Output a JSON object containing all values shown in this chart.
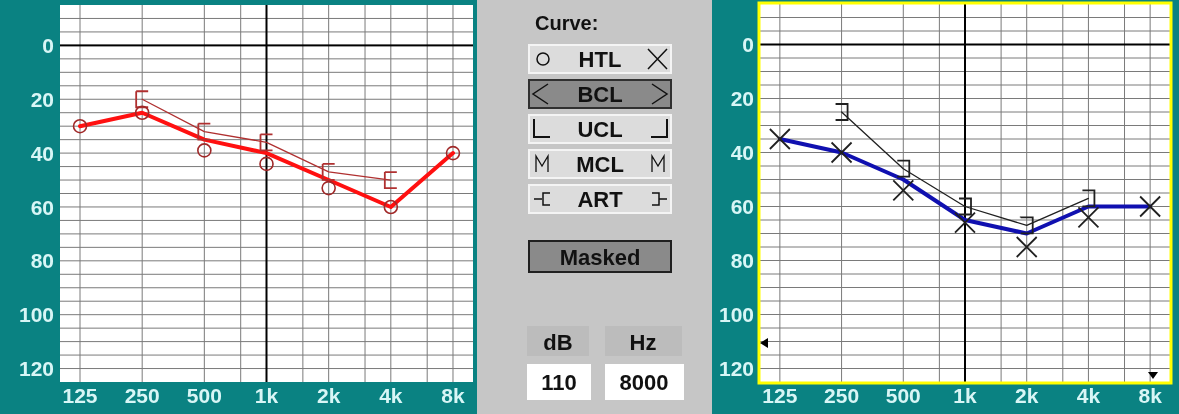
{
  "chart_data": [
    {
      "type": "line",
      "x": [
        125,
        250,
        500,
        1000,
        2000,
        4000,
        8000
      ],
      "xlim": [
        100,
        10000
      ],
      "ylim": [
        125,
        -15
      ],
      "log": "x",
      "grid": true,
      "xticks": [
        125,
        250,
        500,
        {
          "value": 750,
          "label": null
        },
        {
          "value": 1000,
          "label": "1k"
        },
        {
          "value": 1500,
          "label": null
        },
        {
          "value": 2000,
          "label": "2k"
        },
        {
          "value": 3000,
          "label": null
        },
        {
          "value": 4000,
          "label": "4k"
        },
        {
          "value": 6000,
          "label": null
        },
        {
          "value": 8000,
          "label": "8k"
        }
      ],
      "yticks": [
        {
          "value": -10,
          "label": null
        },
        {
          "value": -5,
          "label": null
        },
        0,
        {
          "value": 5,
          "label": null
        },
        {
          "value": 10,
          "label": null
        },
        {
          "value": 15,
          "label": null
        },
        20,
        {
          "value": 25,
          "label": null
        },
        {
          "value": 30,
          "label": null
        },
        {
          "value": 35,
          "label": null
        },
        40,
        {
          "value": 45,
          "label": null
        },
        {
          "value": 50,
          "label": null
        },
        {
          "value": 55,
          "label": null
        },
        60,
        {
          "value": 65,
          "label": null
        },
        {
          "value": 70,
          "label": null
        },
        {
          "value": 75,
          "label": null
        },
        80,
        {
          "value": 85,
          "label": null
        },
        {
          "value": 90,
          "label": null
        },
        {
          "value": 95,
          "label": null
        },
        100,
        {
          "value": 105,
          "label": null
        },
        {
          "value": 110,
          "label": null
        },
        {
          "value": 115,
          "label": null
        },
        120
      ],
      "ref_lines": [
        {
          "axis": "y",
          "value": 0,
          "color": "#000000"
        },
        {
          "axis": "x",
          "value": 1000,
          "color": "#000000"
        }
      ],
      "series": [
        {
          "type": "line",
          "color": "#ff1010",
          "values": [
            30,
            25,
            35,
            40,
            50,
            60,
            40
          ],
          "marker": "none"
        },
        {
          "type": "line",
          "color": "#b03030",
          "x": [
            250,
            500,
            1000,
            2000,
            4000
          ],
          "values": [
            20,
            32,
            36,
            47,
            50
          ],
          "marker": "square"
        },
        {
          "type": "scatter",
          "color": "#a02828",
          "values": [
            30,
            25,
            39,
            44,
            53,
            60,
            40
          ],
          "marker": "circle"
        }
      ]
    },
    {
      "type": "other",
      "title": "Curve:",
      "annotations": [
        "HTL",
        "BCL",
        "UCL",
        "MCL",
        "ART",
        "Masked",
        "dB",
        "Hz",
        "110",
        "8000"
      ]
    },
    {
      "type": "line",
      "x": [
        125,
        250,
        500,
        1000,
        2000,
        4000,
        8000
      ],
      "xlim": [
        100,
        10000
      ],
      "ylim": [
        125,
        -15
      ],
      "log": "x",
      "grid": true,
      "xticks": [
        125,
        250,
        500,
        {
          "value": 750,
          "label": null
        },
        {
          "value": 1000,
          "label": "1k"
        },
        {
          "value": 1500,
          "label": null
        },
        {
          "value": 2000,
          "label": "2k"
        },
        {
          "value": 3000,
          "label": null
        },
        {
          "value": 4000,
          "label": "4k"
        },
        {
          "value": 6000,
          "label": null
        },
        {
          "value": 8000,
          "label": "8k"
        }
      ],
      "yticks": [
        {
          "value": -10,
          "label": null
        },
        {
          "value": -5,
          "label": null
        },
        0,
        {
          "value": 5,
          "label": null
        },
        {
          "value": 10,
          "label": null
        },
        {
          "value": 15,
          "label": null
        },
        20,
        {
          "value": 25,
          "label": null
        },
        {
          "value": 30,
          "label": null
        },
        {
          "value": 35,
          "label": null
        },
        40,
        {
          "value": 45,
          "label": null
        },
        {
          "value": 50,
          "label": null
        },
        {
          "value": 55,
          "label": null
        },
        60,
        {
          "value": 65,
          "label": null
        },
        {
          "value": 70,
          "label": null
        },
        {
          "value": 75,
          "label": null
        },
        80,
        {
          "value": 85,
          "label": null
        },
        {
          "value": 90,
          "label": null
        },
        {
          "value": 95,
          "label": null
        },
        100,
        {
          "value": 105,
          "label": null
        },
        {
          "value": 110,
          "label": null
        },
        {
          "value": 115,
          "label": null
        },
        120
      ],
      "ref_lines": [
        {
          "axis": "y",
          "value": 0,
          "color": "#000000"
        },
        {
          "axis": "x",
          "value": 1000,
          "color": "#000000"
        }
      ],
      "series": [
        {
          "type": "line",
          "color": "#1010b0",
          "values": [
            35,
            40,
            50,
            65,
            70,
            60,
            60
          ],
          "marker": "none"
        },
        {
          "type": "line",
          "color": "#202020",
          "x": [
            250,
            500,
            1000,
            2000,
            4000
          ],
          "values": [
            25,
            46,
            60,
            67,
            57
          ],
          "marker": "square"
        },
        {
          "type": "scatter",
          "color": "#202020",
          "values": [
            35,
            40,
            54,
            66,
            75,
            64,
            60
          ],
          "marker": "cross"
        }
      ]
    }
  ]
}
